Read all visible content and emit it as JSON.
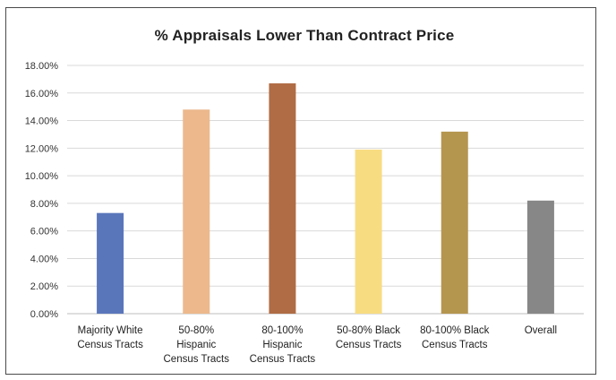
{
  "chart_data": {
    "type": "bar",
    "title": "% Appraisals Lower Than Contract Price",
    "categories": [
      [
        "Majority White",
        "Census Tracts"
      ],
      [
        "50-80%",
        "Hispanic",
        "Census Tracts"
      ],
      [
        "80-100%",
        "Hispanic",
        "Census Tracts"
      ],
      [
        "50-80% Black",
        "Census Tracts"
      ],
      [
        "80-100% Black",
        "Census Tracts"
      ],
      [
        "Overall"
      ]
    ],
    "values": [
      7.3,
      14.8,
      16.7,
      11.9,
      13.2,
      8.2
    ],
    "colors": [
      "#5a76bb",
      "#ecb88c",
      "#b06c45",
      "#f8dc82",
      "#b5964f",
      "#878787"
    ],
    "yticks": [
      "0.00%",
      "2.00%",
      "4.00%",
      "6.00%",
      "8.00%",
      "10.00%",
      "12.00%",
      "14.00%",
      "16.00%",
      "18.00%"
    ],
    "ylim": [
      0,
      18
    ],
    "grid": true,
    "xlabel": "",
    "ylabel": ""
  }
}
